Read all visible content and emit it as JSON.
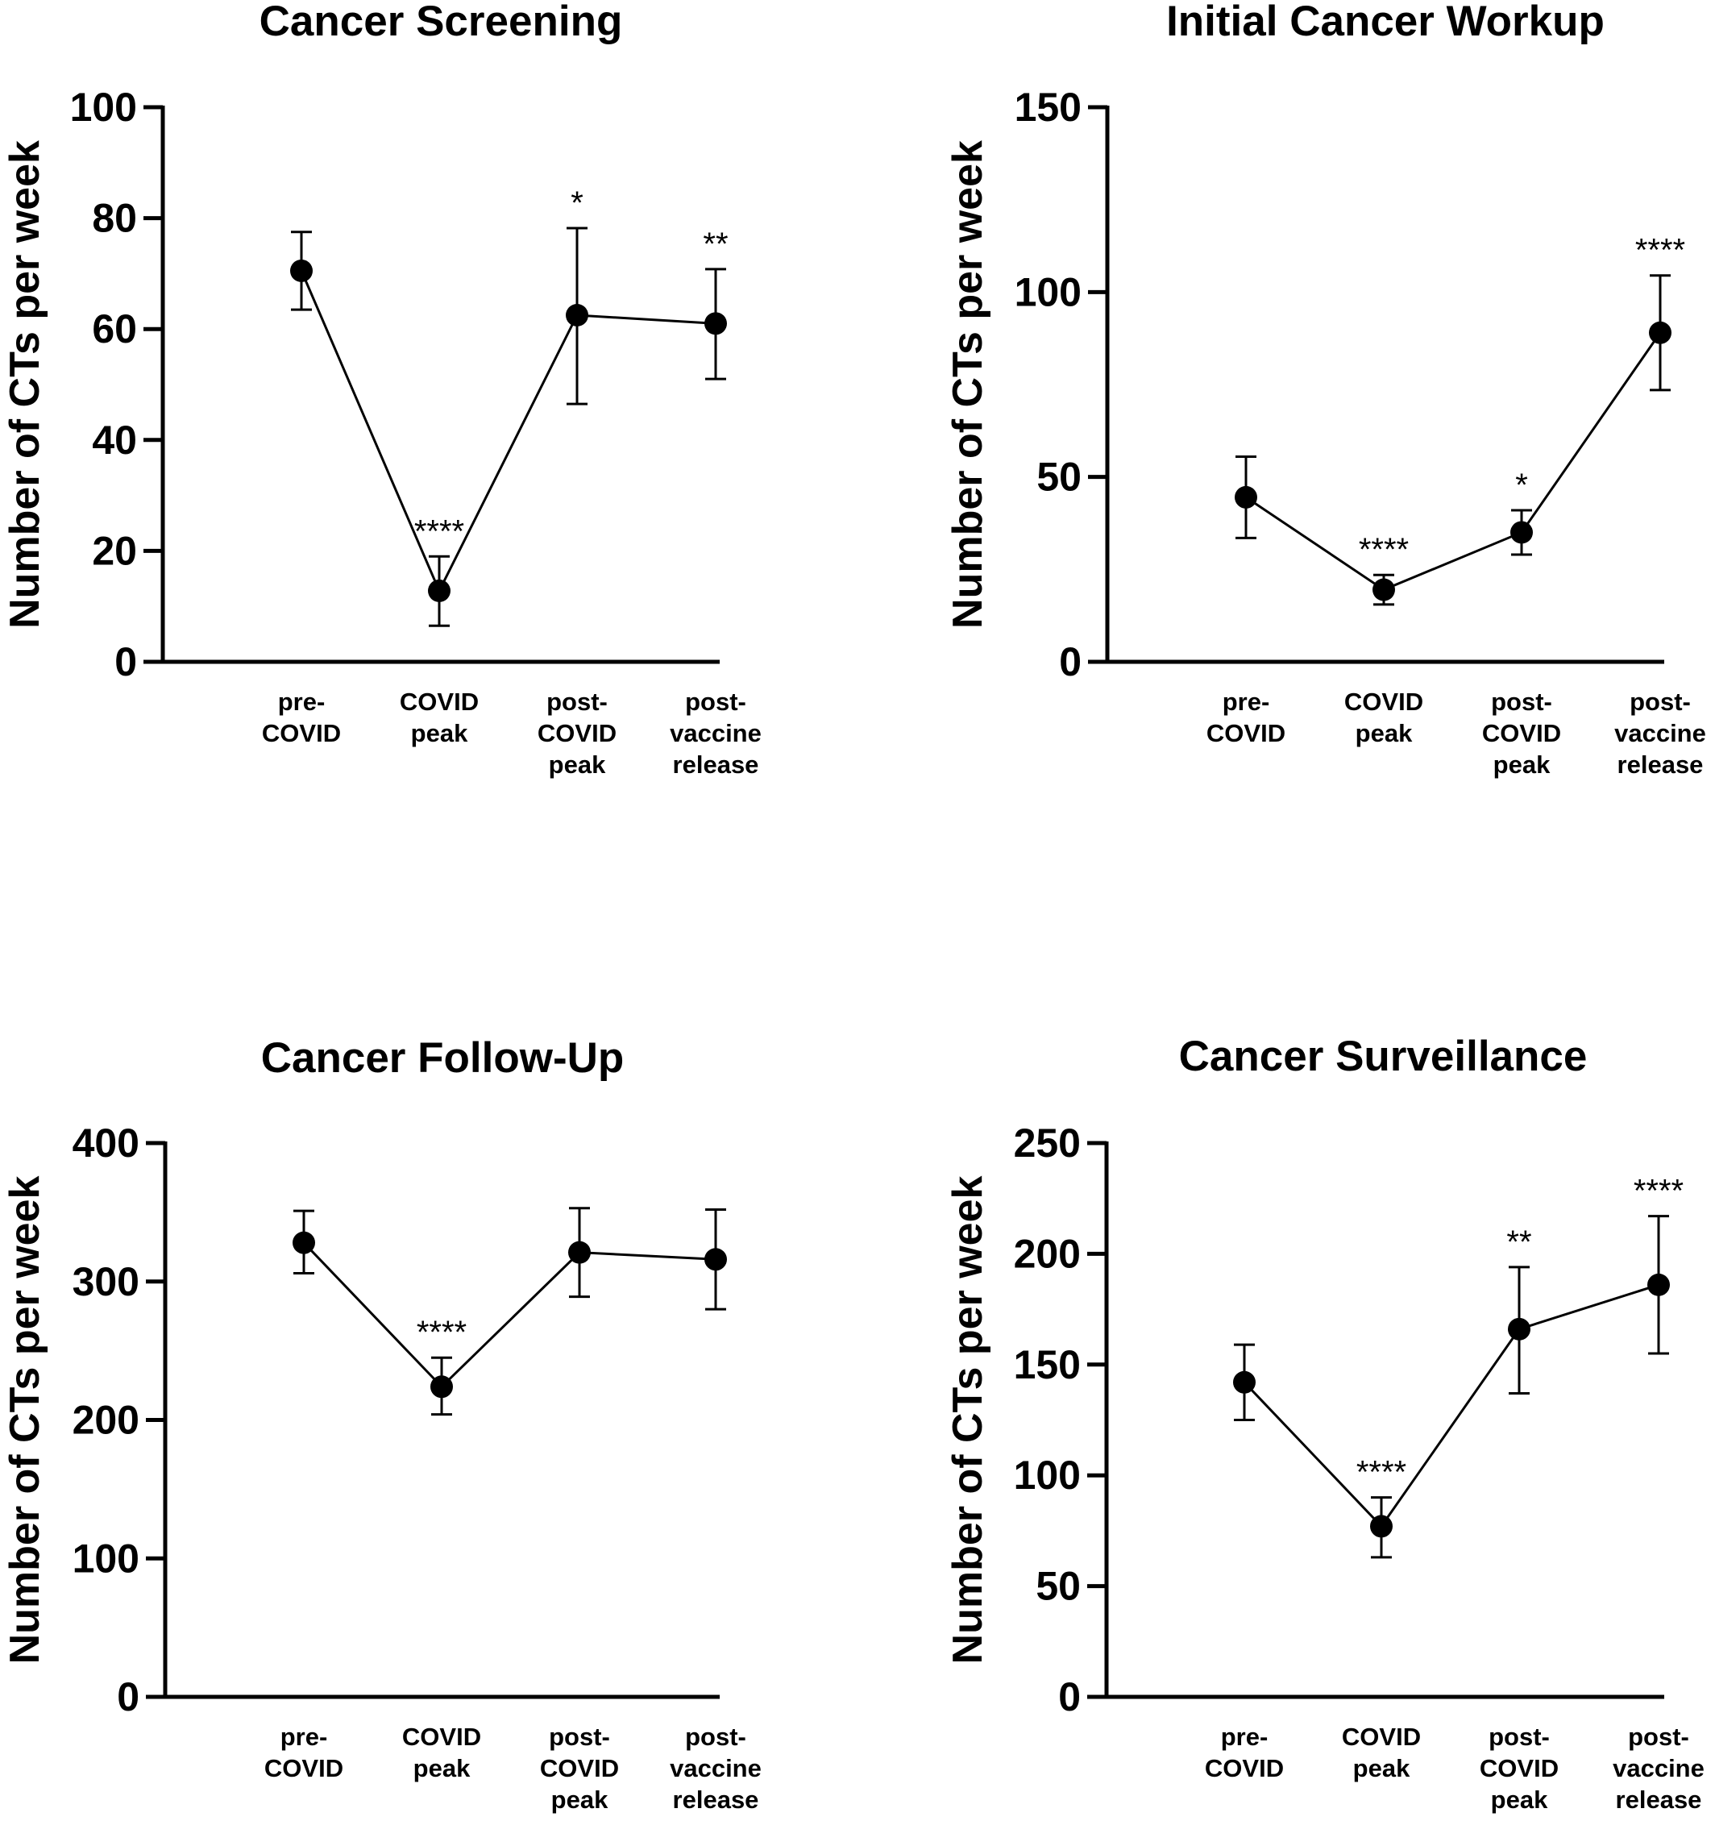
{
  "chart_data": [
    {
      "type": "line",
      "title": "Cancer Screening",
      "ylabel": "Number of CTs per week",
      "categories": [
        [
          "pre-",
          "COVID"
        ],
        [
          "COVID",
          "peak"
        ],
        [
          "post-",
          "COVID",
          "peak"
        ],
        [
          "post-",
          "vaccine",
          "release"
        ]
      ],
      "ylim": [
        0,
        100
      ],
      "yticks": [
        0,
        20,
        40,
        60,
        80,
        100
      ],
      "values": [
        70.5,
        12.8,
        62.5,
        61
      ],
      "err_low": [
        63.5,
        6.5,
        46.5,
        51
      ],
      "err_high": [
        77.5,
        19,
        78.2,
        70.8
      ],
      "significance": [
        "",
        "****",
        "*",
        "**"
      ]
    },
    {
      "type": "line",
      "title": "Initial Cancer Workup",
      "ylabel": "Number of CTs per week",
      "categories": [
        [
          "pre-",
          "COVID"
        ],
        [
          "COVID",
          "peak"
        ],
        [
          "post-",
          "COVID",
          "peak"
        ],
        [
          "post-",
          "vaccine",
          "release"
        ]
      ],
      "ylim": [
        0,
        150
      ],
      "yticks": [
        0,
        50,
        100,
        150
      ],
      "values": [
        44.5,
        19.5,
        35,
        89
      ],
      "err_low": [
        33.5,
        15.5,
        29,
        73.5
      ],
      "err_high": [
        55.5,
        23.5,
        41,
        104.5
      ],
      "significance": [
        "",
        "****",
        "*",
        "****"
      ]
    },
    {
      "type": "line",
      "title": "Cancer Follow-Up",
      "ylabel": "Number of CTs per week",
      "categories": [
        [
          "pre-",
          "COVID"
        ],
        [
          "COVID",
          "peak"
        ],
        [
          "post-",
          "COVID",
          "peak"
        ],
        [
          "post-",
          "vaccine",
          "release"
        ]
      ],
      "ylim": [
        0,
        400
      ],
      "yticks": [
        0,
        100,
        200,
        300,
        400
      ],
      "values": [
        328,
        224,
        321,
        316
      ],
      "err_low": [
        306,
        204,
        289,
        280
      ],
      "err_high": [
        351,
        245,
        353,
        352
      ],
      "significance": [
        "",
        "****",
        "",
        ""
      ]
    },
    {
      "type": "line",
      "title": "Cancer Surveillance",
      "ylabel": "Number of CTs per week",
      "categories": [
        [
          "pre-",
          "COVID"
        ],
        [
          "COVID",
          "peak"
        ],
        [
          "post-",
          "COVID",
          "peak"
        ],
        [
          "post-",
          "vaccine",
          "release"
        ]
      ],
      "ylim": [
        0,
        250
      ],
      "yticks": [
        0,
        50,
        100,
        150,
        200,
        250
      ],
      "values": [
        142,
        77,
        166,
        186
      ],
      "err_low": [
        125,
        63,
        137,
        155
      ],
      "err_high": [
        159,
        90,
        194,
        217
      ],
      "significance": [
        "",
        "****",
        "**",
        "****"
      ]
    }
  ]
}
